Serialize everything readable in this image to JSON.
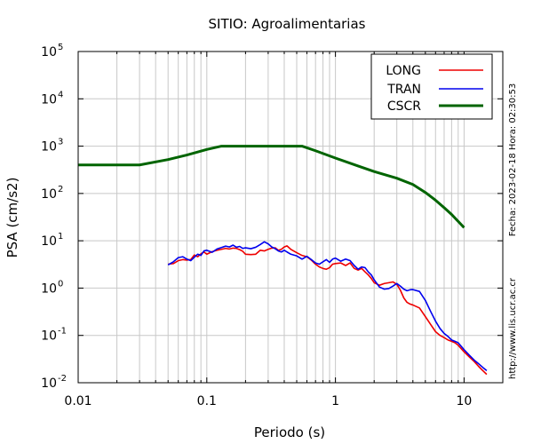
{
  "chart_data": {
    "type": "line",
    "title": "SITIO: Agroalimentarias",
    "xlabel": "Periodo (s)",
    "ylabel": "PSA (cm/s2)",
    "x_scale": "log",
    "y_scale": "log",
    "xlim": [
      0.01,
      20
    ],
    "ylim": [
      0.01,
      100000
    ],
    "x_ticks": [
      {
        "value": 0.01,
        "label": "0.01"
      },
      {
        "value": 0.1,
        "label": "0.1"
      },
      {
        "value": 1,
        "label": "1"
      },
      {
        "value": 10,
        "label": "10"
      }
    ],
    "y_ticks": [
      {
        "value": 0.01,
        "base": "10",
        "exp": "-2"
      },
      {
        "value": 0.1,
        "base": "10",
        "exp": "-1"
      },
      {
        "value": 1,
        "base": "10",
        "exp": "0"
      },
      {
        "value": 10,
        "base": "10",
        "exp": "1"
      },
      {
        "value": 100,
        "base": "10",
        "exp": "2"
      },
      {
        "value": 1000,
        "base": "10",
        "exp": "3"
      },
      {
        "value": 10000,
        "base": "10",
        "exp": "4"
      },
      {
        "value": 100000,
        "base": "10",
        "exp": "5"
      }
    ],
    "grid": true,
    "legend_position": "top-right",
    "series": [
      {
        "name": "LONG",
        "color": "#ee0000",
        "x": [
          0.05,
          0.055,
          0.06,
          0.065,
          0.07,
          0.075,
          0.08,
          0.085,
          0.09,
          0.095,
          0.1,
          0.11,
          0.12,
          0.13,
          0.14,
          0.15,
          0.16,
          0.17,
          0.18,
          0.19,
          0.2,
          0.22,
          0.24,
          0.26,
          0.28,
          0.3,
          0.32,
          0.34,
          0.36,
          0.38,
          0.4,
          0.42,
          0.45,
          0.5,
          0.55,
          0.6,
          0.65,
          0.7,
          0.75,
          0.8,
          0.85,
          0.9,
          0.95,
          1.0,
          1.1,
          1.2,
          1.3,
          1.4,
          1.5,
          1.6,
          1.7,
          1.8,
          1.9,
          2.0,
          2.2,
          2.4,
          2.6,
          2.8,
          3.0,
          3.2,
          3.4,
          3.6,
          3.8,
          4.0,
          4.5,
          5.0,
          5.5,
          6.0,
          6.5,
          7.0,
          7.5,
          8.0,
          8.5,
          9.0,
          10.0,
          11.0,
          12.0,
          13.0,
          14.0,
          15.0
        ],
        "y": [
          3.2,
          3.3,
          3.8,
          4.0,
          3.9,
          4.0,
          5.0,
          4.6,
          5.3,
          5.8,
          5.2,
          5.9,
          6.3,
          6.6,
          6.9,
          6.7,
          7.0,
          6.9,
          6.5,
          6.0,
          5.2,
          5.1,
          5.2,
          6.3,
          6.1,
          6.6,
          7.0,
          7.1,
          6.3,
          6.6,
          7.4,
          7.8,
          6.6,
          5.6,
          4.9,
          4.6,
          3.9,
          3.2,
          2.8,
          2.6,
          2.5,
          2.7,
          3.2,
          3.3,
          3.4,
          3.0,
          3.4,
          2.6,
          2.4,
          2.6,
          2.2,
          1.9,
          1.6,
          1.3,
          1.15,
          1.25,
          1.3,
          1.35,
          1.2,
          0.9,
          0.62,
          0.5,
          0.46,
          0.44,
          0.38,
          0.25,
          0.17,
          0.12,
          0.1,
          0.09,
          0.08,
          0.075,
          0.07,
          0.062,
          0.045,
          0.035,
          0.028,
          0.022,
          0.018,
          0.015
        ]
      },
      {
        "name": "TRAN",
        "color": "#0000ee",
        "x": [
          0.05,
          0.055,
          0.06,
          0.065,
          0.07,
          0.075,
          0.08,
          0.085,
          0.09,
          0.095,
          0.1,
          0.11,
          0.12,
          0.13,
          0.14,
          0.15,
          0.16,
          0.17,
          0.18,
          0.19,
          0.2,
          0.22,
          0.24,
          0.26,
          0.28,
          0.3,
          0.32,
          0.34,
          0.36,
          0.38,
          0.4,
          0.42,
          0.45,
          0.5,
          0.55,
          0.6,
          0.65,
          0.7,
          0.75,
          0.8,
          0.85,
          0.9,
          0.95,
          1.0,
          1.1,
          1.2,
          1.3,
          1.4,
          1.5,
          1.6,
          1.7,
          1.8,
          1.9,
          2.0,
          2.2,
          2.4,
          2.6,
          2.8,
          3.0,
          3.2,
          3.4,
          3.6,
          3.8,
          4.0,
          4.5,
          5.0,
          5.5,
          6.0,
          6.5,
          7.0,
          7.5,
          8.0,
          8.5,
          9.0,
          10.0,
          11.0,
          12.0,
          13.0,
          14.0,
          15.0
        ],
        "y": [
          3.1,
          3.6,
          4.4,
          4.6,
          4.1,
          3.8,
          4.5,
          5.2,
          4.9,
          6.1,
          6.3,
          5.7,
          6.7,
          7.2,
          7.7,
          7.4,
          8.1,
          7.3,
          7.6,
          6.9,
          7.1,
          6.8,
          7.3,
          8.3,
          9.5,
          8.6,
          7.4,
          6.8,
          6.1,
          5.8,
          6.3,
          5.8,
          5.2,
          4.8,
          4.1,
          4.7,
          4.0,
          3.4,
          3.2,
          3.6,
          4.0,
          3.5,
          4.1,
          4.3,
          3.7,
          4.1,
          3.8,
          3.0,
          2.5,
          2.8,
          2.7,
          2.2,
          1.9,
          1.5,
          1.05,
          0.95,
          0.98,
          1.1,
          1.25,
          1.1,
          0.95,
          0.88,
          0.92,
          0.93,
          0.85,
          0.55,
          0.32,
          0.2,
          0.14,
          0.11,
          0.095,
          0.08,
          0.075,
          0.07,
          0.05,
          0.038,
          0.03,
          0.025,
          0.021,
          0.018
        ]
      },
      {
        "name": "CSCR",
        "color": "#006400",
        "x": [
          0.01,
          0.03,
          0.05,
          0.07,
          0.1,
          0.13,
          0.2,
          0.3,
          0.4,
          0.55,
          0.7,
          1.0,
          1.5,
          2.0,
          3.0,
          4.0,
          5.0,
          6.0,
          7.0,
          8.0,
          10.0
        ],
        "y": [
          400,
          400,
          520,
          650,
          850,
          1000,
          1000,
          1000,
          1000,
          1000,
          800,
          560,
          380,
          290,
          210,
          155,
          105,
          72,
          50,
          36,
          19
        ]
      }
    ]
  },
  "side_texts": {
    "timestamp": "Fecha: 2023-02-18 Hora: 02:30:53",
    "website": "http://www.lis.ucr.ac.cr"
  }
}
